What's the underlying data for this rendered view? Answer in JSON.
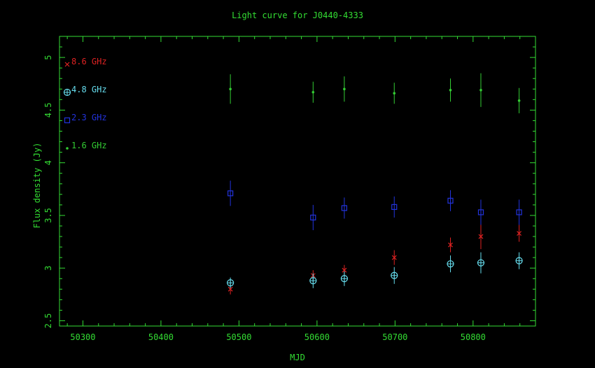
{
  "chart_data": {
    "type": "scatter",
    "title": "Light curve for J0440-4333",
    "xlabel": "MJD",
    "ylabel": "Flux density (Jy)",
    "xlim": [
      50270,
      50880
    ],
    "ylim": [
      2.45,
      5.2
    ],
    "xticks": [
      50300,
      50400,
      50500,
      50600,
      50700,
      50800
    ],
    "yticks": [
      2.5,
      3,
      3.5,
      4,
      4.5,
      5
    ],
    "ytick_labels": [
      "2.5",
      "3",
      "3.5",
      "4",
      "4.5",
      "5"
    ],
    "legend_placement": "top-left inside",
    "colors": {
      "axes": "#33dd33",
      "background": "#000000"
    },
    "series": [
      {
        "name": "8.6 GHz",
        "marker": "x",
        "color": "#dd2222",
        "points": [
          {
            "x": 50489,
            "y": 2.8,
            "err": 0.05
          },
          {
            "x": 50595,
            "y": 2.93,
            "err": 0.05
          },
          {
            "x": 50635,
            "y": 2.98,
            "err": 0.05
          },
          {
            "x": 50699,
            "y": 3.1,
            "err": 0.07
          },
          {
            "x": 50771,
            "y": 3.22,
            "err": 0.07
          },
          {
            "x": 50810,
            "y": 3.3,
            "err": 0.12
          },
          {
            "x": 50859,
            "y": 3.33,
            "err": 0.08
          }
        ]
      },
      {
        "name": "4.8 GHz",
        "marker": "circle-plus",
        "color": "#66ddee",
        "points": [
          {
            "x": 50489,
            "y": 2.86,
            "err": 0.05
          },
          {
            "x": 50595,
            "y": 2.88,
            "err": 0.07
          },
          {
            "x": 50635,
            "y": 2.9,
            "err": 0.07
          },
          {
            "x": 50699,
            "y": 2.93,
            "err": 0.08
          },
          {
            "x": 50771,
            "y": 3.04,
            "err": 0.08
          },
          {
            "x": 50810,
            "y": 3.05,
            "err": 0.1
          },
          {
            "x": 50859,
            "y": 3.07,
            "err": 0.08
          }
        ]
      },
      {
        "name": "2.3 GHz",
        "marker": "square",
        "color": "#2233dd",
        "points": [
          {
            "x": 50489,
            "y": 3.71,
            "err": 0.12
          },
          {
            "x": 50595,
            "y": 3.48,
            "err": 0.12
          },
          {
            "x": 50635,
            "y": 3.57,
            "err": 0.1
          },
          {
            "x": 50699,
            "y": 3.58,
            "err": 0.1
          },
          {
            "x": 50771,
            "y": 3.64,
            "err": 0.1
          },
          {
            "x": 50810,
            "y": 3.53,
            "err": 0.12
          },
          {
            "x": 50859,
            "y": 3.53,
            "err": 0.12
          }
        ]
      },
      {
        "name": "1.6 GHz",
        "marker": "dot",
        "color": "#33cc33",
        "points": [
          {
            "x": 50489,
            "y": 4.7,
            "err": 0.14
          },
          {
            "x": 50595,
            "y": 4.67,
            "err": 0.1
          },
          {
            "x": 50635,
            "y": 4.7,
            "err": 0.12
          },
          {
            "x": 50699,
            "y": 4.66,
            "err": 0.1
          },
          {
            "x": 50771,
            "y": 4.69,
            "err": 0.11
          },
          {
            "x": 50810,
            "y": 4.69,
            "err": 0.16
          },
          {
            "x": 50859,
            "y": 4.59,
            "err": 0.12
          }
        ]
      }
    ]
  }
}
